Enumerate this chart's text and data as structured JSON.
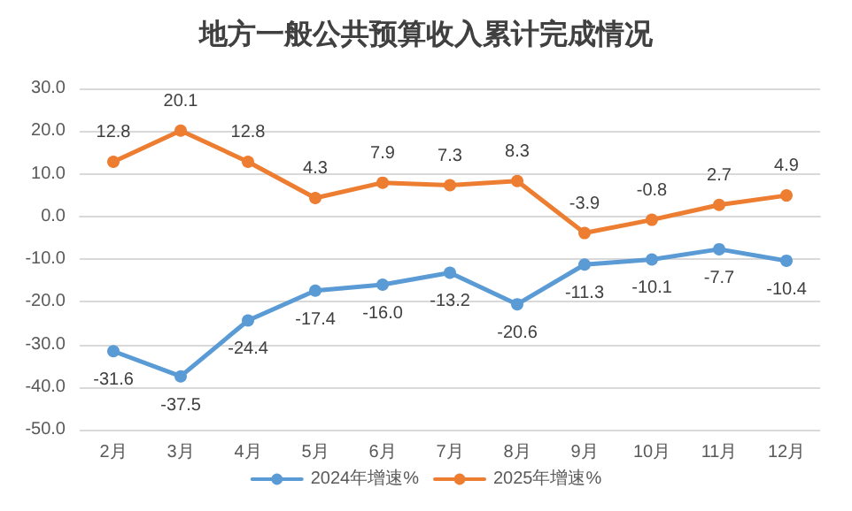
{
  "chart_data": {
    "type": "line",
    "title": "地方一般公共预算收入累计完成情况",
    "categories": [
      "2月",
      "3月",
      "4月",
      "5月",
      "6月",
      "7月",
      "8月",
      "9月",
      "10月",
      "11月",
      "12月"
    ],
    "series": [
      {
        "name": "2024年增速%",
        "color": "#5b9bd5",
        "values": [
          -31.6,
          -37.5,
          -24.4,
          -17.4,
          -16.0,
          -13.2,
          -20.6,
          -11.3,
          -10.1,
          -7.7,
          -10.4
        ],
        "value_labels": [
          "-31.6",
          "-37.5",
          "-24.4",
          "-17.4",
          "-16.0",
          "-13.2",
          "-20.6",
          "-11.3",
          "-10.1",
          "-7.7",
          "-10.4"
        ]
      },
      {
        "name": "2025年增速%",
        "color": "#ed7d31",
        "values": [
          12.8,
          20.1,
          12.8,
          4.3,
          7.9,
          7.3,
          8.3,
          -3.9,
          -0.8,
          2.7,
          4.9
        ],
        "value_labels": [
          "12.8",
          "20.1",
          "12.8",
          "4.3",
          "7.9",
          "7.3",
          "8.3",
          "-3.9",
          "-0.8",
          "2.7",
          "4.9"
        ]
      }
    ],
    "ylim": [
      -50,
      30
    ],
    "yticks": [
      {
        "value": -50,
        "label": "-50.0"
      },
      {
        "value": -40,
        "label": "-40.0"
      },
      {
        "value": -30,
        "label": "-30.0"
      },
      {
        "value": -20,
        "label": "-20.0"
      },
      {
        "value": -10,
        "label": "-10.0"
      },
      {
        "value": 0,
        "label": "0.0"
      },
      {
        "value": 10,
        "label": "10.0"
      },
      {
        "value": 20,
        "label": "20.0"
      },
      {
        "value": 30,
        "label": "30.0"
      }
    ],
    "grid": "y",
    "legend": "bottom",
    "marker": "circle",
    "line_style": "solid"
  }
}
